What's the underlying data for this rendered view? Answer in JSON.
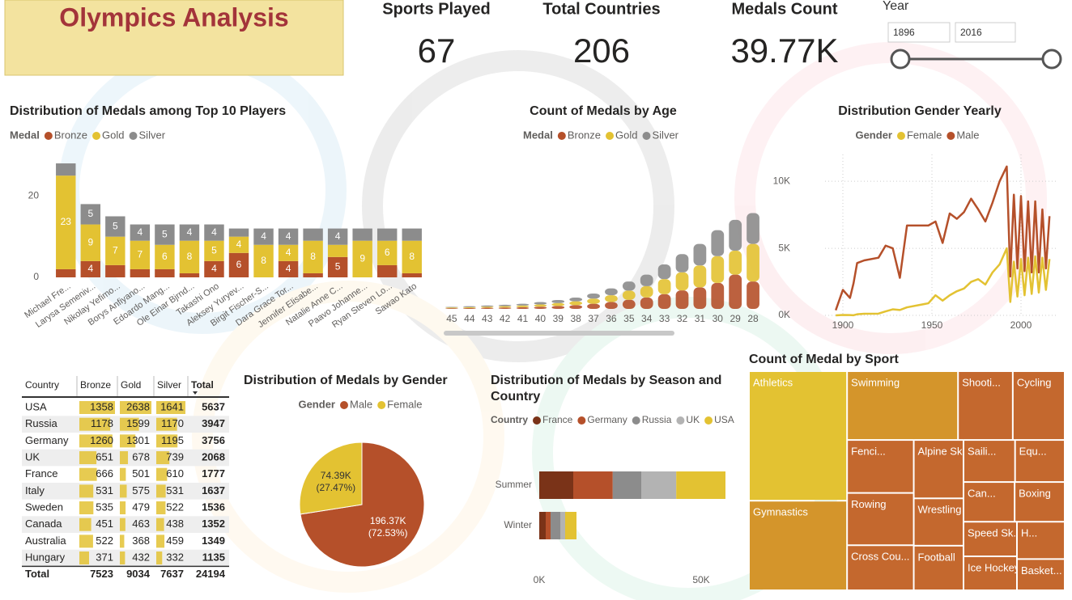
{
  "header": {
    "title": "Olympics Analysis"
  },
  "kpis": [
    {
      "label": "Sports Played",
      "value": 67
    },
    {
      "label": "Total Countries",
      "value": 206
    },
    {
      "label": "Medals Count",
      "value": "39.77K"
    }
  ],
  "slicer": {
    "label": "Year",
    "from": 1896,
    "to": 2016
  },
  "chart_data": [
    {
      "type": "bar",
      "stacked": true,
      "title": "Distribution of Medals among Top 10 Players",
      "legend_title": "Medal",
      "categories": [
        "Michael Fre...",
        "Larysa Semeniv...",
        "Nikolay Yefimo...",
        "Borys Anfiyano...",
        "Edoardo Mang...",
        "Ole Einar Bjrnd...",
        "Takashi Ono",
        "Aleksey Yuryev...",
        "Birgit Fischer-S...",
        "Dara Grace Tor...",
        "Jennifer Elisabe...",
        "Natalie Anne C...",
        "Paavo Johanne...",
        "Ryan Steven Lo...",
        "Sawao Kato"
      ],
      "series": [
        {
          "name": "Bronze",
          "color": "#b5502a",
          "values": [
            2,
            4,
            3,
            2,
            2,
            1,
            4,
            6,
            0,
            4,
            1,
            5,
            0,
            3,
            1
          ]
        },
        {
          "name": "Gold",
          "color": "#e3c232",
          "values": [
            23,
            9,
            7,
            7,
            6,
            8,
            5,
            4,
            8,
            4,
            8,
            3,
            9,
            6,
            8
          ]
        },
        {
          "name": "Silver",
          "color": "#8c8c8c",
          "values": [
            3,
            5,
            5,
            4,
            5,
            4,
            4,
            2,
            4,
            4,
            3,
            4,
            3,
            3,
            3
          ]
        }
      ],
      "ylim": [
        0,
        30
      ],
      "yticks": [
        0,
        20
      ]
    },
    {
      "type": "ribbon",
      "title": "Count of Medals by Age",
      "legend_title": "Medal",
      "categories": [
        45,
        44,
        43,
        42,
        41,
        40,
        39,
        38,
        37,
        36,
        35,
        34,
        33,
        32,
        31,
        30,
        29,
        28
      ],
      "series": [
        {
          "name": "Bronze",
          "color": "#b5502a",
          "values": [
            20,
            25,
            35,
            40,
            50,
            65,
            85,
            110,
            150,
            200,
            265,
            335,
            430,
            540,
            630,
            760,
            1000,
            800
          ]
        },
        {
          "name": "Gold",
          "color": "#e3c232",
          "values": [
            20,
            25,
            30,
            40,
            50,
            65,
            85,
            110,
            150,
            200,
            270,
            330,
            440,
            530,
            640,
            780,
            700,
            1100
          ]
        },
        {
          "name": "Silver",
          "color": "#8c8c8c",
          "values": [
            20,
            30,
            35,
            40,
            50,
            70,
            90,
            110,
            150,
            200,
            265,
            335,
            430,
            530,
            630,
            760,
            900,
            900
          ]
        }
      ],
      "ylim": [
        0,
        3000
      ]
    },
    {
      "type": "line",
      "title": "Distribution Gender Yearly",
      "legend_title": "Gender",
      "x": [
        1896,
        1900,
        1904,
        1906,
        1908,
        1912,
        1920,
        1924,
        1928,
        1932,
        1936,
        1948,
        1952,
        1956,
        1960,
        1964,
        1968,
        1972,
        1976,
        1980,
        1984,
        1988,
        1992,
        1994,
        1996,
        1998,
        2000,
        2002,
        2004,
        2006,
        2008,
        2010,
        2012,
        2014,
        2016
      ],
      "series": [
        {
          "name": "Female",
          "color": "#e3c232",
          "values": [
            0,
            30,
            20,
            10,
            80,
            120,
            130,
            300,
            450,
            400,
            600,
            900,
            1500,
            1100,
            1500,
            1800,
            2000,
            2500,
            2700,
            2300,
            3200,
            3800,
            5000,
            1000,
            4000,
            1400,
            4200,
            1500,
            4300,
            1600,
            4400,
            1700,
            4300,
            1900,
            4200
          ]
        },
        {
          "name": "Male",
          "color": "#b5502a",
          "values": [
            380,
            1900,
            1300,
            2400,
            3900,
            4100,
            4300,
            5200,
            5000,
            2800,
            6700,
            6700,
            7000,
            5400,
            7600,
            7200,
            7700,
            8700,
            7900,
            7000,
            8400,
            10000,
            11100,
            2900,
            9000,
            3500,
            8900,
            3300,
            8500,
            3200,
            8500,
            3200,
            7900,
            3500,
            7400
          ]
        }
      ],
      "xlim": [
        1890,
        2020
      ],
      "xticks": [
        1900,
        1950,
        2000
      ],
      "ylim": [
        0,
        12000
      ],
      "yticks": [
        {
          "value": 0,
          "label": "0K"
        },
        {
          "value": 5000,
          "label": "5K"
        },
        {
          "value": 10000,
          "label": "10K"
        }
      ],
      "grid": true
    },
    {
      "type": "pie",
      "title": "Distribution of Medals by Gender",
      "legend_title": "Gender",
      "categories": [
        "Male",
        "Female"
      ],
      "values": [
        196370,
        74390
      ],
      "value_labels": [
        "196.37K (72.53%)",
        "74.39K (27.47%)"
      ],
      "colors": [
        "#b5502a",
        "#e3c232"
      ]
    },
    {
      "type": "bar",
      "orientation": "horizontal",
      "stacked": true,
      "title": "Distribution of Medals by Season and Country",
      "legend_title": "Country",
      "categories": [
        "Summer",
        "Winter"
      ],
      "series": [
        {
          "name": "France",
          "color": "#7a3318",
          "values": [
            10500,
            2000
          ]
        },
        {
          "name": "Germany",
          "color": "#b5502a",
          "values": [
            12200,
            1500
          ]
        },
        {
          "name": "Russia",
          "color": "#8c8c8c",
          "values": [
            8800,
            3000
          ]
        },
        {
          "name": "UK",
          "color": "#b3b3b3",
          "values": [
            10800,
            1500
          ]
        },
        {
          "name": "USA",
          "color": "#e3c232",
          "values": [
            15200,
            3500
          ]
        }
      ],
      "xlim": [
        0,
        60000
      ],
      "xticks": [
        {
          "value": 0,
          "label": "0K"
        },
        {
          "value": 50000,
          "label": "50K"
        }
      ]
    },
    {
      "type": "treemap",
      "title": "Count of Medal by Sport",
      "categories": [
        "Athletics",
        "Gymnastics",
        "Swimming",
        "Shooti...",
        "Cycling",
        "Fenci...",
        "Rowing",
        "Cross Cou...",
        "Alpine Skii...",
        "Wrestling",
        "Football",
        "Saili...",
        "Equ...",
        "Can...",
        "Boxing",
        "Speed Sk...",
        "Ice Hockey",
        "H...",
        "Basket..."
      ],
      "values": [
        38624,
        26707,
        23195,
        11448,
        10859,
        10735,
        10595,
        9133,
        8829,
        7154,
        6745,
        6586,
        6344,
        6171,
        6047,
        5613,
        5516,
        5417,
        4536
      ],
      "colors": [
        "#e3c232",
        "#d4952b",
        "#d4952b",
        "#c4682e",
        "#c4682e",
        "#c4682e",
        "#c4682e",
        "#c4682e",
        "#c4682e",
        "#c4682e",
        "#c4682e",
        "#c4682e",
        "#c4682e",
        "#c4682e",
        "#c4682e",
        "#c4682e",
        "#c4682e",
        "#c4682e",
        "#c4682e"
      ]
    }
  ],
  "table": {
    "columns": [
      "Country",
      "Bronze",
      "Gold",
      "Silver",
      "Total"
    ],
    "rows": [
      [
        "USA",
        1358,
        2638,
        1641,
        5637
      ],
      [
        "Russia",
        1178,
        1599,
        1170,
        3947
      ],
      [
        "Germany",
        1260,
        1301,
        1195,
        3756
      ],
      [
        "UK",
        651,
        678,
        739,
        2068
      ],
      [
        "France",
        666,
        501,
        610,
        1777
      ],
      [
        "Italy",
        531,
        575,
        531,
        1637
      ],
      [
        "Sweden",
        535,
        479,
        522,
        1536
      ],
      [
        "Canada",
        451,
        463,
        438,
        1352
      ],
      [
        "Australia",
        522,
        368,
        459,
        1349
      ],
      [
        "Hungary",
        371,
        432,
        332,
        1135
      ]
    ],
    "total": [
      "Total",
      7523,
      9034,
      7637,
      24194
    ]
  }
}
